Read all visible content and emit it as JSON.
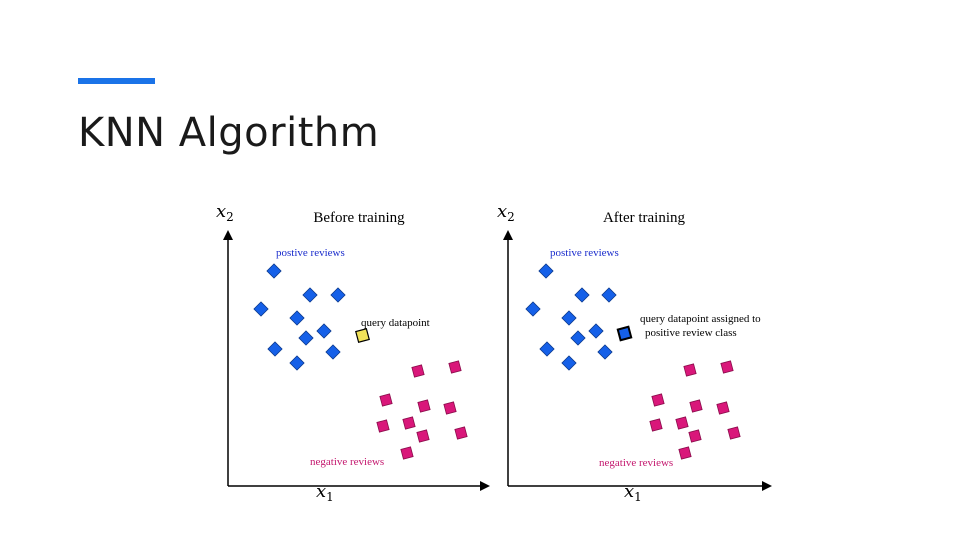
{
  "slide": {
    "title": "KNN Algorithm",
    "accent_color": "#1a73e8"
  },
  "panels": [
    {
      "title": "Before training",
      "x_axis_label": "x",
      "x_axis_sub": "1",
      "y_axis_label": "x",
      "y_axis_sub": "2",
      "positive_label": "postive reviews",
      "negative_label": "negative reviews",
      "query_label_lines": [
        "query datapoint"
      ],
      "query_class": "unassigned"
    },
    {
      "title": "After training",
      "x_axis_label": "x",
      "x_axis_sub": "1",
      "y_axis_label": "x",
      "y_axis_sub": "2",
      "positive_label": "postive reviews",
      "negative_label": "negative reviews",
      "query_label_lines": [
        "query datapoint assigned to",
        "positive review class"
      ],
      "query_class": "positive"
    }
  ],
  "colors": {
    "positive": "#1560e8",
    "negative": "#d9177a",
    "query_unassigned": "#f2e35a",
    "query_positive": "#1560e8",
    "positive_text": "#1a2ccc",
    "negative_text": "#c4176e"
  }
}
